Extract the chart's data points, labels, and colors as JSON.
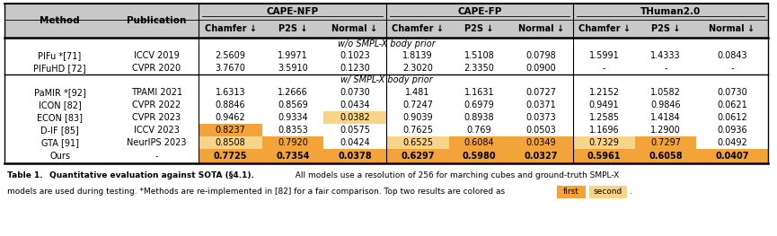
{
  "rows_section1": [
    [
      "PIFu *​[71]",
      "ICCV 2019",
      "2.5609",
      "1.9971",
      "0.1023",
      "1.8139",
      "1.5108",
      "0.0798",
      "1.5991",
      "1.4333",
      "0.0843"
    ],
    [
      "PIFuHD [72]",
      "CVPR 2020",
      "3.7670",
      "3.5910",
      "0.1230",
      "2.3020",
      "2.3350",
      "0.0900",
      "-",
      "-",
      "-"
    ]
  ],
  "rows_section2": [
    [
      "PaMIR *​[92]",
      "TPAMI 2021",
      "1.6313",
      "1.2666",
      "0.0730",
      "1.481",
      "1.1631",
      "0.0727",
      "1.2152",
      "1.0582",
      "0.0730"
    ],
    [
      "ICON [82]",
      "CVPR 2022",
      "0.8846",
      "0.8569",
      "0.0434",
      "0.7247",
      "0.6979",
      "0.0371",
      "0.9491",
      "0.9846",
      "0.0621"
    ],
    [
      "ECON [83]",
      "CVPR 2023",
      "0.9462",
      "0.9334",
      "0.0382",
      "0.9039",
      "0.8938",
      "0.0373",
      "1.2585",
      "1.4184",
      "0.0612"
    ],
    [
      "D-IF [85]",
      "ICCV 2023",
      "0.8237",
      "0.8353",
      "0.0575",
      "0.7625",
      "0.769",
      "0.0503",
      "1.1696",
      "1.2900",
      "0.0936"
    ],
    [
      "GTA [91]",
      "NeurIPS 2023",
      "0.8508",
      "0.7920",
      "0.0424",
      "0.6525",
      "0.6084",
      "0.0349",
      "0.7329",
      "0.7297",
      "0.0492"
    ]
  ],
  "row_ours": [
    "Ours",
    "-",
    "0.7725",
    "0.7354",
    "0.0378",
    "0.6297",
    "0.5980",
    "0.0327",
    "0.5961",
    "0.6058",
    "0.0407"
  ],
  "first_color": "#F2A43A",
  "second_color": "#F7D488",
  "header_bg": "#C8C8C8",
  "col_labels": [
    "Method",
    "Publication",
    "Chamfer ↓",
    "P2S ↓",
    "Normal ↓",
    "Chamfer ↓",
    "P2S ↓",
    "Normal ↓",
    "Chamfer ↓",
    "P2S ↓",
    "Normal ↓"
  ],
  "group_labels": [
    "CAPE-NFP",
    "CAPE-FP",
    "THuman2.0"
  ],
  "section1_label": "w/o SMPL-X body prior",
  "section2_label": "w/ SMPL-X body prior"
}
